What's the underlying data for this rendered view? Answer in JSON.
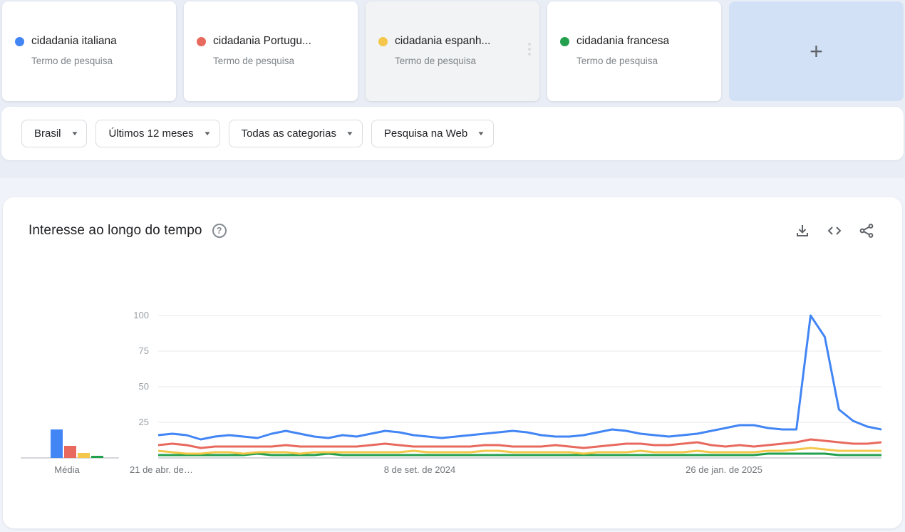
{
  "terms": {
    "sublabel": "Termo de pesquisa",
    "add_label": "+",
    "cards": [
      {
        "label": "cidadania italiana",
        "color": "#4285f4",
        "state": "default"
      },
      {
        "label": "cidadania Portugu...",
        "color": "#e8695e",
        "state": "default"
      },
      {
        "label": "cidadania espanh...",
        "color": "#f4c74a",
        "state": "hover"
      },
      {
        "label": "cidadania francesa",
        "color": "#22a04e",
        "state": "default"
      }
    ]
  },
  "filters": [
    {
      "name": "region",
      "label": "Brasil"
    },
    {
      "name": "time-range",
      "label": "Últimos 12 meses"
    },
    {
      "name": "category",
      "label": "Todas as categorias"
    },
    {
      "name": "search-type",
      "label": "Pesquisa na Web"
    }
  ],
  "chart_section": {
    "title": "Interesse ao longo do tempo",
    "help_glyph": "?",
    "actions": [
      "download-icon",
      "embed-icon",
      "share-icon"
    ]
  },
  "chart_data": {
    "type": "line",
    "title": "Interesse ao longo do tempo",
    "ylim": [
      0,
      100
    ],
    "yticks": [
      25,
      50,
      75,
      100
    ],
    "grid": true,
    "average_label": "Média",
    "x_axis_labels": [
      "21 de abr. de…",
      "8 de set. de 2024",
      "26 de jan. de 2025"
    ],
    "series": [
      {
        "name": "cidadania italiana",
        "color": "#4285f4",
        "average": 20,
        "values": [
          16,
          17,
          16,
          13,
          15,
          16,
          15,
          14,
          17,
          19,
          17,
          15,
          14,
          16,
          15,
          17,
          19,
          18,
          16,
          15,
          14,
          15,
          16,
          17,
          18,
          19,
          18,
          16,
          15,
          15,
          16,
          18,
          20,
          19,
          17,
          16,
          15,
          16,
          17,
          19,
          21,
          23,
          23,
          21,
          20,
          20,
          100,
          85,
          34,
          26,
          22,
          20
        ]
      },
      {
        "name": "cidadania Portuguesa",
        "color": "#e8695e",
        "average": 8.5,
        "values": [
          9,
          10,
          9,
          7,
          8,
          8,
          8,
          8,
          8,
          9,
          8,
          8,
          8,
          8,
          8,
          9,
          10,
          9,
          8,
          8,
          8,
          8,
          8,
          9,
          9,
          8,
          8,
          8,
          9,
          8,
          7,
          8,
          9,
          10,
          10,
          9,
          9,
          10,
          11,
          9,
          8,
          9,
          8,
          9,
          10,
          11,
          13,
          12,
          11,
          10,
          10,
          11
        ]
      },
      {
        "name": "cidadania espanhola",
        "color": "#f4c74a",
        "average": 3.5,
        "values": [
          5,
          4,
          3,
          3,
          4,
          4,
          3,
          4,
          4,
          4,
          3,
          4,
          4,
          4,
          4,
          4,
          4,
          4,
          5,
          4,
          4,
          4,
          4,
          5,
          5,
          4,
          4,
          4,
          4,
          4,
          3,
          4,
          4,
          4,
          5,
          4,
          4,
          4,
          5,
          4,
          4,
          4,
          4,
          5,
          5,
          6,
          7,
          6,
          5,
          5,
          5,
          5
        ]
      },
      {
        "name": "cidadania francesa",
        "color": "#22a04e",
        "average": 1.5,
        "values": [
          2,
          2,
          2,
          2,
          2,
          2,
          2,
          3,
          2,
          2,
          2,
          2,
          3,
          2,
          2,
          2,
          2,
          2,
          2,
          2,
          2,
          2,
          2,
          2,
          2,
          2,
          2,
          2,
          2,
          2,
          2,
          2,
          2,
          2,
          2,
          2,
          2,
          2,
          2,
          2,
          2,
          2,
          2,
          3,
          3,
          3,
          3,
          3,
          2,
          2,
          2,
          2
        ]
      }
    ]
  }
}
